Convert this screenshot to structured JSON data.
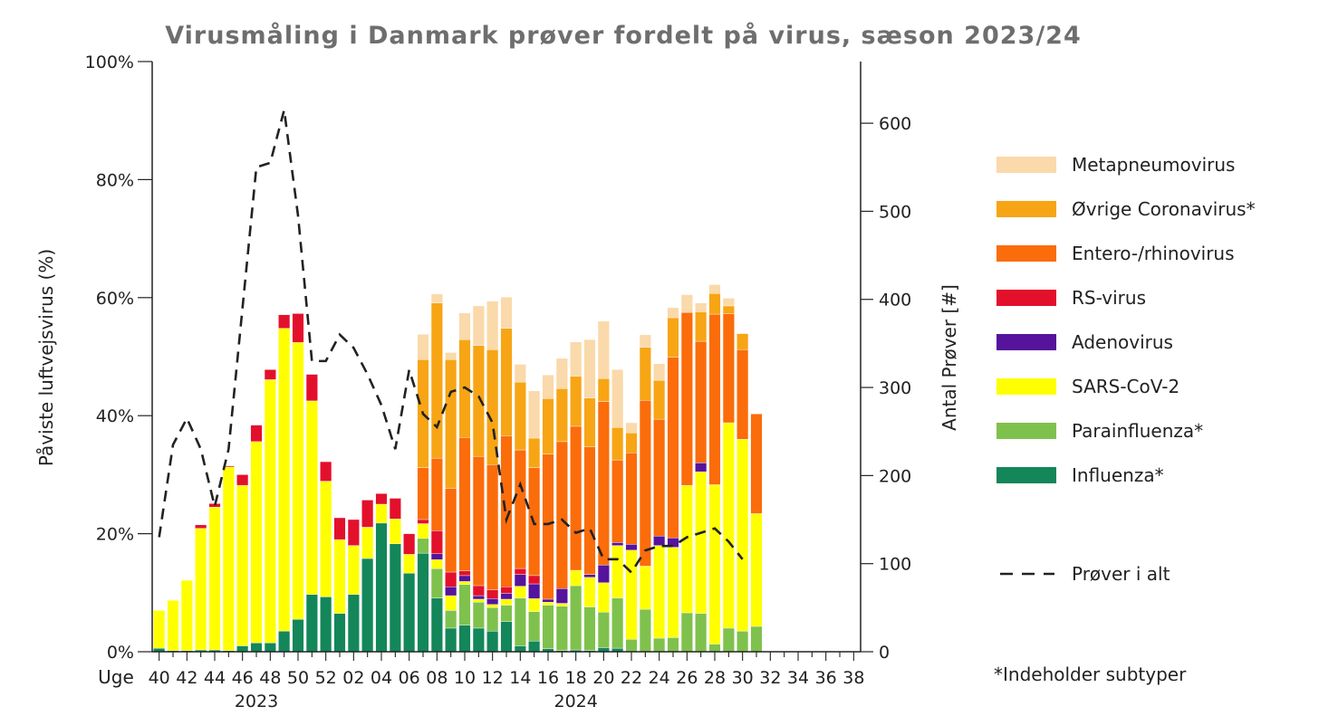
{
  "chart_data": {
    "type": "bar",
    "stacked": true,
    "title": "Virusmåling i Danmark prøver fordelt på virus, sæson 2023/24",
    "ylabel": "Påviste luftvejsvirus (%)",
    "y2label": "Antal Prøver [#]",
    "xlabel": "Uge",
    "ylim": [
      0,
      100
    ],
    "y2lim": [
      0,
      670
    ],
    "yticks": [
      "0%",
      "20%",
      "40%",
      "60%",
      "80%",
      "100%"
    ],
    "y2ticks": [
      "0",
      "100",
      "200",
      "300",
      "400",
      "500",
      "600"
    ],
    "weeks": [
      "40",
      "41",
      "42",
      "43",
      "44",
      "45",
      "46",
      "47",
      "48",
      "49",
      "50",
      "51",
      "52",
      "01",
      "02",
      "03",
      "04",
      "05",
      "06",
      "07",
      "08",
      "09",
      "10",
      "11",
      "12",
      "13",
      "14",
      "15",
      "16",
      "17",
      "18",
      "19",
      "20",
      "21",
      "22",
      "23",
      "24",
      "25",
      "26",
      "27",
      "28",
      "29",
      "30",
      "31",
      "32",
      "33",
      "34",
      "35",
      "36",
      "37",
      "38"
    ],
    "week_labels": [
      "40",
      "42",
      "44",
      "46",
      "48",
      "50",
      "52",
      "02",
      "04",
      "06",
      "08",
      "10",
      "12",
      "14",
      "16",
      "18",
      "20",
      "22",
      "24",
      "26",
      "28",
      "30",
      "32",
      "34",
      "36",
      "38"
    ],
    "year_labels": [
      {
        "label": "2023",
        "week_index": 7
      },
      {
        "label": "2024",
        "week_index": 30
      }
    ],
    "footnote": "*Indeholder subtyper",
    "series": [
      {
        "name": "Influenza*",
        "color": "#13865a",
        "values": [
          0.6,
          0.2,
          0.2,
          0.3,
          0.3,
          0.2,
          1.0,
          1.5,
          1.5,
          3.5,
          5.5,
          9.7,
          9.3,
          6.5,
          9.7,
          15.8,
          21.8,
          18.3,
          13.3,
          16.7,
          9.1,
          4.0,
          4.5,
          4.0,
          3.5,
          5.1,
          1.0,
          1.8,
          0.5,
          0.2,
          0.3,
          0.2,
          0.7,
          0.6,
          0,
          0,
          0,
          0,
          0,
          0,
          0,
          0,
          0,
          0,
          0
        ]
      },
      {
        "name": "Parainfluenza*",
        "color": "#7fc14d",
        "values": [
          0,
          0,
          0,
          0,
          0,
          0,
          0,
          0,
          0,
          0,
          0,
          0,
          0,
          0,
          0,
          0,
          0,
          0,
          0,
          2.5,
          5.0,
          3.0,
          6.9,
          4.4,
          4.0,
          2.8,
          8.1,
          5.0,
          7.4,
          7.5,
          10.9,
          7.4,
          6.0,
          8.5,
          2.1,
          7.2,
          2.3,
          2.4,
          6.6,
          6.5,
          1.3,
          4.0,
          3.5,
          4.3,
          0
        ]
      },
      {
        "name": "SARS-CoV-2",
        "color": "#ffff00",
        "values": [
          6.4,
          8.5,
          11.9,
          20.6,
          24.2,
          31.1,
          27.2,
          34.1,
          44.6,
          51.3,
          46.9,
          32.8,
          19.6,
          12.5,
          8.3,
          5.3,
          3.2,
          4.2,
          3.2,
          2.5,
          1.5,
          2.5,
          0.5,
          0.5,
          0.5,
          1.0,
          2.0,
          2.2,
          0.5,
          0.5,
          2.6,
          5.0,
          5.0,
          8.9,
          15.1,
          7.3,
          15.7,
          15.3,
          21.6,
          24.0,
          27.0,
          34.8,
          32.5,
          19.1,
          0
        ]
      },
      {
        "name": "Adenovirus",
        "color": "#56139b",
        "values": [
          0,
          0,
          0,
          0,
          0,
          0,
          0,
          0,
          0,
          0,
          0,
          0,
          0,
          0,
          0,
          0,
          0,
          0,
          0,
          0,
          1.0,
          1.5,
          1.0,
          0.6,
          1.0,
          1.0,
          2.0,
          2.5,
          0.5,
          2.5,
          0,
          0.5,
          3.0,
          0.5,
          1.0,
          0,
          1.6,
          1.6,
          0,
          1.5,
          0,
          0,
          0,
          0,
          0
        ]
      },
      {
        "name": "RS-virus",
        "color": "#e3102c",
        "values": [
          0,
          0,
          0,
          0.6,
          0.6,
          0.2,
          1.8,
          2.8,
          1.7,
          2.3,
          4.9,
          4.5,
          3.3,
          3.7,
          4.4,
          4.6,
          1.8,
          3.5,
          3.5,
          0.7,
          3.9,
          2.5,
          0.8,
          1.7,
          1.5,
          1.1,
          1.0,
          1.4,
          0,
          0,
          0,
          0,
          0,
          0,
          0,
          0,
          0,
          0,
          0,
          0,
          0,
          0,
          0,
          0,
          0
        ]
      },
      {
        "name": "Entero-/rhinovirus",
        "color": "#fb6c0a",
        "values": [
          0,
          0,
          0,
          0,
          0,
          0,
          0,
          0,
          0,
          0,
          0,
          0,
          0,
          0,
          0,
          0,
          0,
          0,
          0,
          8.8,
          12.3,
          14.2,
          22.6,
          21.9,
          21.2,
          25.6,
          20.1,
          18.3,
          24.6,
          24.9,
          24.4,
          21.6,
          27.7,
          14.0,
          15.5,
          28.1,
          19.8,
          30.6,
          29.3,
          20.6,
          28.9,
          18.5,
          15.2,
          16.9,
          0
        ]
      },
      {
        "name": "Øvrige Coronavirus*",
        "color": "#f7a515",
        "values": [
          0,
          0,
          0,
          0,
          0,
          0,
          0,
          0,
          0,
          0,
          0,
          0,
          0,
          0,
          0,
          0,
          0,
          0,
          0,
          18.3,
          26.3,
          21.8,
          16.6,
          18.8,
          19.5,
          18.2,
          11.5,
          5.0,
          9.4,
          9.0,
          8.5,
          8.3,
          3.9,
          5.5,
          3.4,
          9.0,
          6.6,
          6.7,
          0,
          5.0,
          3.5,
          1.3,
          2.7,
          0,
          0
        ]
      },
      {
        "name": "Metapneumovirus",
        "color": "#fad9aa",
        "values": [
          0,
          0,
          0,
          0,
          0,
          0,
          0,
          0,
          0,
          0,
          0,
          0,
          0,
          0,
          0,
          0,
          0,
          0,
          0,
          4.3,
          1.5,
          1.2,
          4.5,
          6.7,
          8.2,
          5.3,
          3.0,
          8.0,
          4.0,
          5.1,
          5.8,
          9.9,
          9.7,
          9.8,
          1.7,
          2.1,
          2.8,
          1.7,
          3.0,
          1.5,
          1.5,
          1.3,
          0,
          0,
          0
        ]
      }
    ],
    "line": {
      "name": "Prøver i alt",
      "axis": "right",
      "color": "#222222",
      "values": [
        130,
        235,
        265,
        230,
        165,
        230,
        390,
        550,
        555,
        615,
        495,
        330,
        330,
        360,
        345,
        315,
        280,
        230,
        320,
        270,
        255,
        295,
        300,
        290,
        260,
        150,
        190,
        145,
        145,
        150,
        135,
        140,
        105,
        105,
        90,
        115,
        120,
        120,
        130,
        135,
        140,
        125,
        105,
        null,
        null
      ]
    }
  }
}
